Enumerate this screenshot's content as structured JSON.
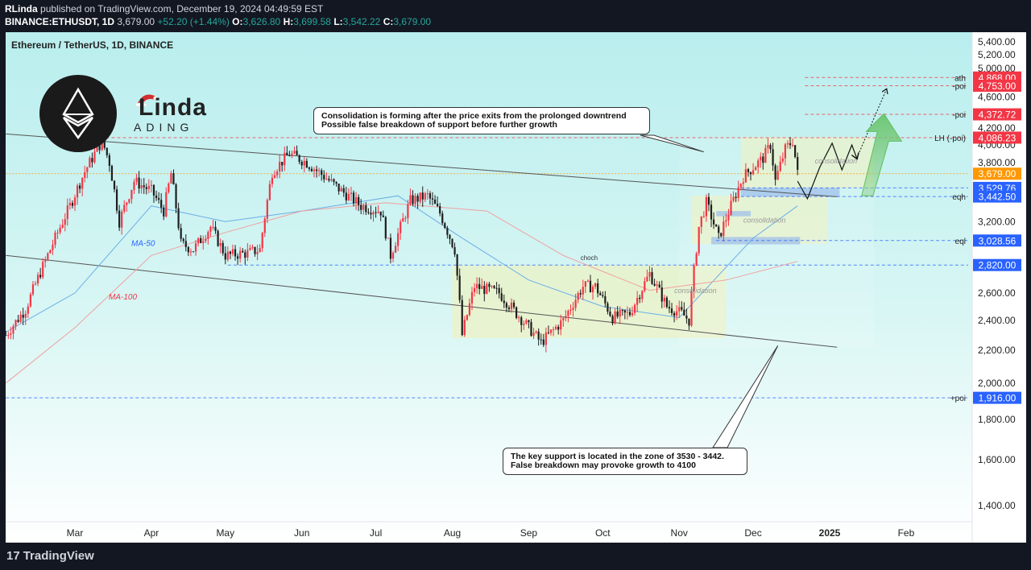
{
  "header": {
    "publisher": "RLinda",
    "published_text": "published on TradingView.com, December 19, 2024 04:49:59 EST",
    "symbol": "BINANCE:ETHUSDT, 1D",
    "last": "3,679.00",
    "change": "+52.20 (+1.44%)",
    "o_label": "O:",
    "o": "3,626.80",
    "h_label": "H:",
    "h": "3,699.58",
    "l_label": "L:",
    "l": "3,542.22",
    "c_label": "C:",
    "c": "3,679.00"
  },
  "chart_title": "Ethereum / TetherUS, 1D, BINANCE",
  "brand": {
    "linda": "Linda",
    "trading": "ADING",
    "footer": "TradingView"
  },
  "annotations": {
    "top": [
      "Consolidation is forming after the price exits from the prolonged downtrend",
      "Possible false breakdown of support before further growth"
    ],
    "bottom": [
      "The key support is located in the zone of 3530 - 3442.",
      "False breakdown may provoke growth to 4100"
    ],
    "ma50": "MA-50",
    "ma100": "MA-100",
    "choch": "choch",
    "consolidation": "consolidation"
  },
  "colors": {
    "background_top": "#b9eeee",
    "background_bottom": "#ffffff",
    "up": "#f23645",
    "down": "#1e1e1e",
    "red_tag": "#f23645",
    "blue_tag": "#2962ff",
    "orange_tag": "#ff9800",
    "ma50": "#6aaee8",
    "ma100": "#f0a0a0"
  },
  "chart_data": {
    "type": "candlestick",
    "x_axis": {
      "labels": [
        "Mar",
        "Apr",
        "May",
        "Jun",
        "Jul",
        "Aug",
        "Sep",
        "Oct",
        "Nov",
        "Dec",
        "2025",
        "Feb"
      ],
      "label_dates": [
        "2024-03-01",
        "2024-04-01",
        "2024-05-01",
        "2024-06-01",
        "2024-07-01",
        "2024-08-01",
        "2024-09-01",
        "2024-10-01",
        "2024-11-01",
        "2024-12-01",
        "2025-01-01",
        "2025-02-01"
      ],
      "range": [
        "2024-02-02",
        "2025-02-28"
      ]
    },
    "y_axis": {
      "scale": "log",
      "ticks": [
        1400,
        1600,
        1800,
        2000,
        2200,
        2400,
        2600,
        3200,
        3800,
        4000,
        4200,
        4600,
        5000,
        5200,
        5400
      ],
      "tick_labels": [
        "1,400.00",
        "1,600.00",
        "1,800.00",
        "2,000.00",
        "2,200.00",
        "2,400.00",
        "2,600.00",
        "3,200.00",
        "3,800.00",
        "4,000.00",
        "4,200.00",
        "4,600.00",
        "5,000.00",
        "5,200.00",
        "5,400.00"
      ],
      "range": [
        1250,
        5500
      ]
    },
    "ohlc_path": [
      [
        "2024-02-02",
        2300
      ],
      [
        "2024-02-10",
        2480
      ],
      [
        "2024-02-20",
        2950
      ],
      [
        "2024-02-28",
        3350
      ],
      [
        "2024-03-05",
        3700
      ],
      [
        "2024-03-12",
        4050
      ],
      [
        "2024-03-15",
        3800
      ],
      [
        "2024-03-19",
        3200
      ],
      [
        "2024-03-25",
        3600
      ],
      [
        "2024-04-01",
        3500
      ],
      [
        "2024-04-06",
        3300
      ],
      [
        "2024-04-09",
        3680
      ],
      [
        "2024-04-13",
        3000
      ],
      [
        "2024-04-18",
        2950
      ],
      [
        "2024-04-25",
        3150
      ],
      [
        "2024-05-01",
        2900
      ],
      [
        "2024-05-10",
        2920
      ],
      [
        "2024-05-15",
        2950
      ],
      [
        "2024-05-20",
        3700
      ],
      [
        "2024-05-27",
        3900
      ],
      [
        "2024-06-03",
        3800
      ],
      [
        "2024-06-10",
        3650
      ],
      [
        "2024-06-17",
        3500
      ],
      [
        "2024-06-25",
        3350
      ],
      [
        "2024-07-03",
        3300
      ],
      [
        "2024-07-07",
        2900
      ],
      [
        "2024-07-15",
        3400
      ],
      [
        "2024-07-22",
        3450
      ],
      [
        "2024-07-27",
        3280
      ],
      [
        "2024-08-02",
        2950
      ],
      [
        "2024-08-05",
        2300
      ],
      [
        "2024-08-10",
        2650
      ],
      [
        "2024-08-20",
        2600
      ],
      [
        "2024-08-27",
        2450
      ],
      [
        "2024-09-06",
        2250
      ],
      [
        "2024-09-15",
        2400
      ],
      [
        "2024-09-23",
        2650
      ],
      [
        "2024-09-28",
        2650
      ],
      [
        "2024-10-05",
        2420
      ],
      [
        "2024-10-12",
        2450
      ],
      [
        "2024-10-20",
        2750
      ],
      [
        "2024-10-27",
        2500
      ],
      [
        "2024-11-02",
        2450
      ],
      [
        "2024-11-05",
        2400
      ],
      [
        "2024-11-09",
        3150
      ],
      [
        "2024-11-12",
        3380
      ],
      [
        "2024-11-17",
        3050
      ],
      [
        "2024-11-22",
        3350
      ],
      [
        "2024-11-27",
        3650
      ],
      [
        "2024-12-05",
        3850
      ],
      [
        "2024-12-08",
        4000
      ],
      [
        "2024-12-10",
        3600
      ],
      [
        "2024-12-14",
        3950
      ],
      [
        "2024-12-17",
        4050
      ],
      [
        "2024-12-19",
        3679
      ]
    ],
    "ma50": [
      [
        "2024-02-02",
        2320
      ],
      [
        "2024-03-01",
        2600
      ],
      [
        "2024-04-01",
        3350
      ],
      [
        "2024-05-01",
        3200
      ],
      [
        "2024-06-01",
        3300
      ],
      [
        "2024-07-10",
        3450
      ],
      [
        "2024-08-05",
        3050
      ],
      [
        "2024-09-01",
        2700
      ],
      [
        "2024-10-01",
        2500
      ],
      [
        "2024-11-01",
        2420
      ],
      [
        "2024-12-01",
        3050
      ],
      [
        "2024-12-19",
        3350
      ]
    ],
    "ma100": [
      [
        "2024-02-02",
        2000
      ],
      [
        "2024-03-01",
        2350
      ],
      [
        "2024-04-01",
        2900
      ],
      [
        "2024-05-01",
        3100
      ],
      [
        "2024-06-01",
        3300
      ],
      [
        "2024-07-05",
        3380
      ],
      [
        "2024-08-15",
        3300
      ],
      [
        "2024-09-15",
        2900
      ],
      [
        "2024-10-20",
        2620
      ],
      [
        "2024-11-20",
        2700
      ],
      [
        "2024-12-19",
        2850
      ]
    ],
    "projection": [
      [
        "2024-12-19",
        3600
      ],
      [
        "2024-12-23",
        3420
      ],
      [
        "2024-12-28",
        3750
      ],
      [
        "2025-01-02",
        4020
      ],
      [
        "2025-01-06",
        3720
      ],
      [
        "2025-01-10",
        4000
      ],
      [
        "2025-01-12",
        3850
      ]
    ],
    "projection_dotted": [
      [
        "2025-01-12",
        3850
      ],
      [
        "2025-01-24",
        4700
      ]
    ],
    "channel": {
      "upper": [
        [
          "2024-02-02",
          4130
        ],
        [
          "2025-01-04",
          3440
        ]
      ],
      "lower": [
        [
          "2024-02-02",
          2900
        ],
        [
          "2025-01-04",
          2220
        ]
      ]
    },
    "levels": [
      {
        "label": "ath",
        "value": 4868,
        "tag": "4,868.00",
        "color": "red"
      },
      {
        "label": "-poi",
        "value": 4753,
        "tag": "4,753.00",
        "color": "red"
      },
      {
        "label": "-poi",
        "value": 4372.72,
        "tag": "4,372.72",
        "color": "red"
      },
      {
        "label": "LH (-poi)",
        "value": 4086.23,
        "tag": "4,086.23",
        "color": "red"
      },
      {
        "label": "",
        "value": 3679,
        "tag": "3,679.00",
        "color": "orange"
      },
      {
        "label": "",
        "value": 3529.76,
        "tag": "3,529.76",
        "color": "blue"
      },
      {
        "label": "eqh",
        "value": 3442.5,
        "tag": "3,442.50",
        "color": "blue"
      },
      {
        "label": "eql",
        "value": 3028.56,
        "tag": "3,028.56",
        "color": "blue"
      },
      {
        "label": "",
        "value": 2820,
        "tag": "2,820.00",
        "color": "blue"
      },
      {
        "label": "+poi",
        "value": 1916,
        "tag": "1,916.00",
        "color": "blue"
      }
    ]
  }
}
